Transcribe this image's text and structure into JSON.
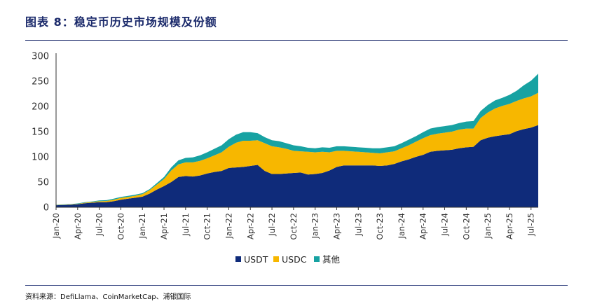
{
  "figure": {
    "title": "图表 8：稳定币历史市场规模及份额",
    "source": "资料来源：DefiLlama、CoinMarketCap、浦银国际"
  },
  "chart_data": {
    "type": "area",
    "stacked": true,
    "title": "",
    "xlabel": "",
    "ylabel": "",
    "ylim": [
      0,
      300
    ],
    "yticks": [
      0,
      50,
      100,
      150,
      200,
      250,
      300
    ],
    "grid": false,
    "legend_position": "bottom",
    "x": [
      "2020-01",
      "2020-02",
      "2020-03",
      "2020-04",
      "2020-05",
      "2020-06",
      "2020-07",
      "2020-08",
      "2020-09",
      "2020-10",
      "2020-11",
      "2020-12",
      "2021-01",
      "2021-02",
      "2021-03",
      "2021-04",
      "2021-05",
      "2021-06",
      "2021-07",
      "2021-08",
      "2021-09",
      "2021-10",
      "2021-11",
      "2021-12",
      "2022-01",
      "2022-02",
      "2022-03",
      "2022-04",
      "2022-05",
      "2022-06",
      "2022-07",
      "2022-08",
      "2022-09",
      "2022-10",
      "2022-11",
      "2022-12",
      "2023-01",
      "2023-02",
      "2023-03",
      "2023-04",
      "2023-05",
      "2023-06",
      "2023-07",
      "2023-08",
      "2023-09",
      "2023-10",
      "2023-11",
      "2023-12",
      "2024-01",
      "2024-02",
      "2024-03",
      "2024-04",
      "2024-05",
      "2024-06",
      "2024-07",
      "2024-08",
      "2024-09",
      "2024-10",
      "2024-11",
      "2024-12",
      "2025-01",
      "2025-02",
      "2025-03",
      "2025-04",
      "2025-05",
      "2025-06",
      "2025-07",
      "2025-08"
    ],
    "x_tick_labels": [
      "Jan-20",
      "Apr-20",
      "Jul-20",
      "Oct-20",
      "Jan-21",
      "Apr-21",
      "Jul-21",
      "Oct-21",
      "Jan-22",
      "Apr-22",
      "Jul-22",
      "Oct-22",
      "Jan-23",
      "Apr-23",
      "Jul-23",
      "Oct-23",
      "Jan-24",
      "Apr-24",
      "Jul-24",
      "Oct-24",
      "Jan-25",
      "Apr-25",
      "Jul-25"
    ],
    "series": [
      {
        "name": "USDT",
        "color": "#0f2b7a",
        "values": [
          4,
          4.5,
          5,
          6,
          8,
          9,
          10,
          10,
          12,
          15,
          17,
          19,
          21,
          27,
          35,
          42,
          50,
          60,
          62,
          61,
          63,
          67,
          70,
          72,
          78,
          79,
          80,
          82,
          84,
          72,
          66,
          66,
          67,
          68,
          69,
          65,
          66,
          68,
          73,
          80,
          83,
          83,
          83,
          83,
          83,
          82,
          83,
          86,
          91,
          95,
          100,
          104,
          110,
          112,
          113,
          114,
          117,
          119,
          120,
          133,
          138,
          141,
          143,
          145,
          151,
          155,
          158,
          163
        ]
      },
      {
        "name": "USDC",
        "color": "#f7b700",
        "values": [
          0.5,
          0.6,
          0.7,
          0.8,
          1,
          1.5,
          2,
          2.5,
          3,
          3.5,
          3.5,
          4,
          5,
          7,
          10,
          14,
          23,
          25,
          27,
          28,
          29,
          30,
          33,
          37,
          42,
          49,
          52,
          50,
          49,
          55,
          55,
          53,
          49,
          44,
          42,
          45,
          43,
          42,
          36,
          32,
          29,
          28,
          27,
          26,
          25,
          25,
          26,
          25,
          26,
          28,
          30,
          33,
          33,
          34,
          35,
          36,
          37,
          37,
          36,
          44,
          50,
          55,
          58,
          60,
          60,
          61,
          62,
          64
        ]
      },
      {
        "name": "其他",
        "color": "#17a2a2",
        "values": [
          0.5,
          0.6,
          0.6,
          0.8,
          1,
          1,
          1.5,
          1.5,
          2,
          2,
          2,
          2,
          2,
          2,
          3,
          4,
          6,
          8,
          9,
          10,
          11,
          12,
          13,
          14,
          15,
          16,
          17,
          17,
          14,
          12,
          12,
          12,
          11,
          11,
          10,
          8,
          8,
          9,
          9,
          9,
          9,
          9,
          9,
          9,
          9,
          10,
          10,
          10,
          10,
          11,
          11,
          12,
          13,
          13,
          13,
          13,
          13,
          14,
          15,
          14,
          15,
          16,
          16,
          18,
          20,
          26,
          31,
          38
        ]
      }
    ]
  }
}
